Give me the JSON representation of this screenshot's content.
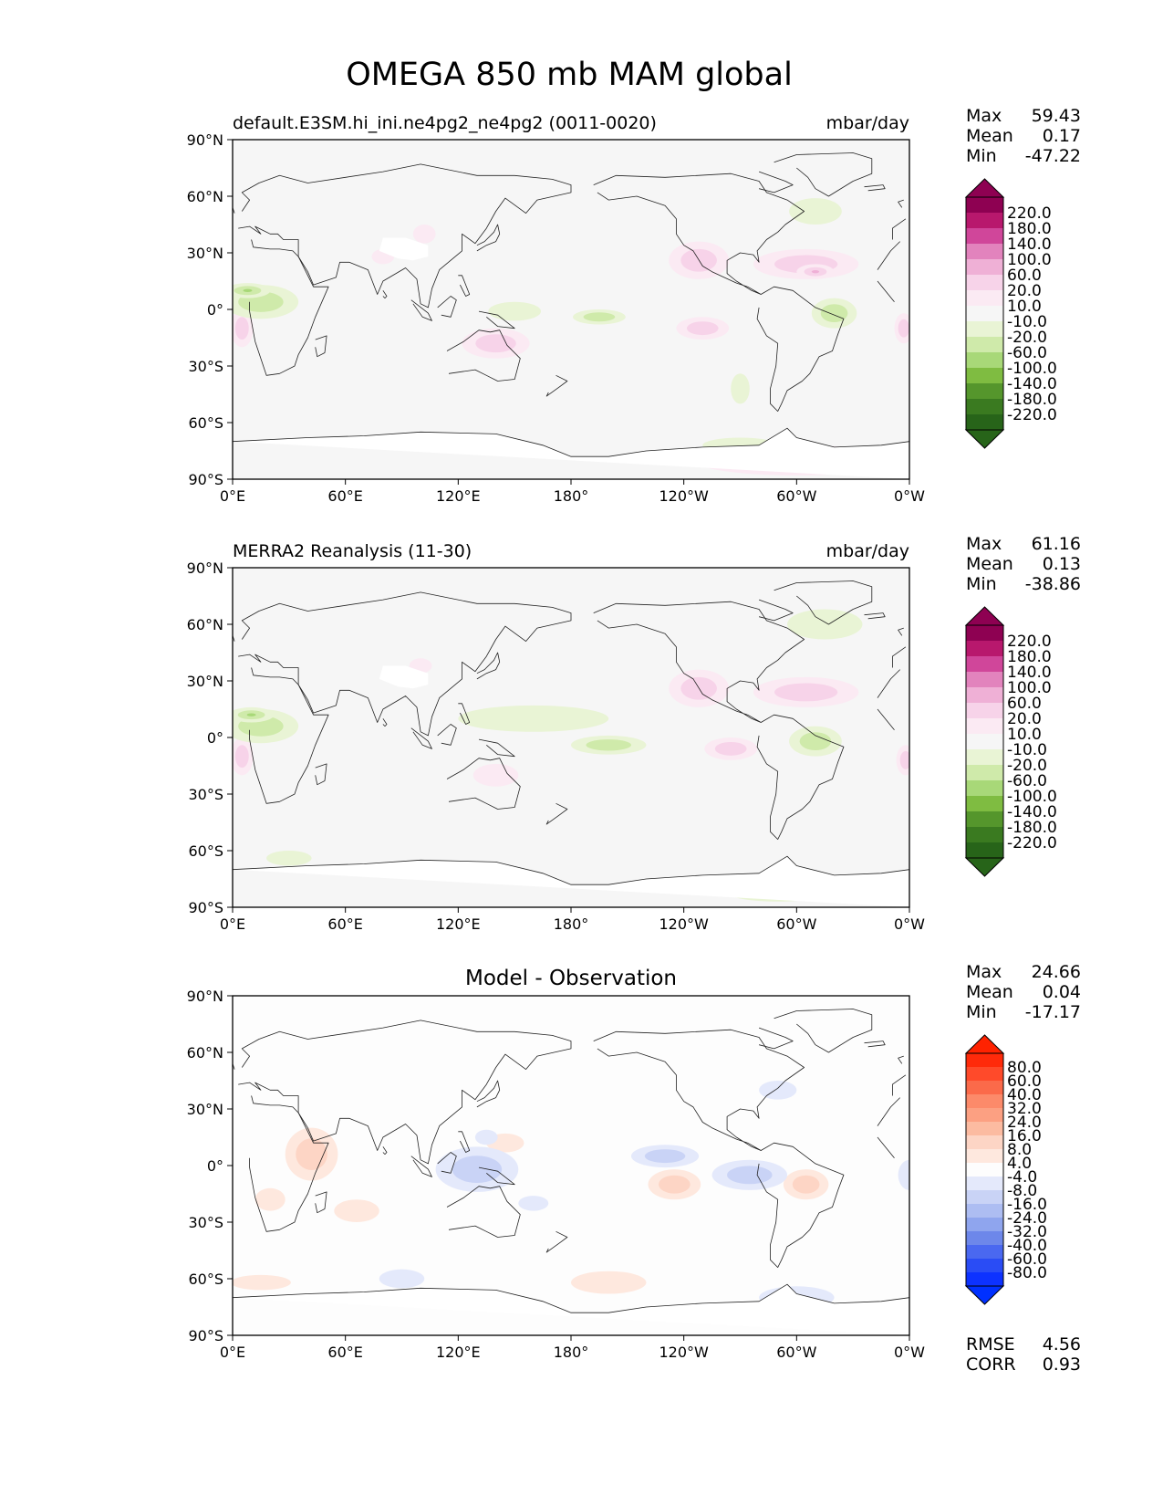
{
  "figure": {
    "title": "OMEGA 850 mb MAM global"
  },
  "axes": {
    "lat_ticks": [
      "90°N",
      "60°N",
      "30°N",
      "0°",
      "30°S",
      "60°S",
      "90°S"
    ],
    "lon_ticks": [
      "0°E",
      "60°E",
      "120°E",
      "180°",
      "120°W",
      "60°W",
      "0°W"
    ]
  },
  "panels": [
    {
      "id": "test",
      "left_title": "default.E3SM.hi_ini.ne4pg2_ne4pg2 (0011-0020)",
      "center_title": "",
      "right_title": "mbar/day",
      "stats": [
        {
          "label": "Max",
          "value": "59.43"
        },
        {
          "label": "Mean",
          "value": "0.17"
        },
        {
          "label": "Min",
          "value": "-47.22"
        }
      ],
      "colorbar": {
        "labels": [
          "220.0",
          "180.0",
          "140.0",
          "100.0",
          "60.0",
          "20.0",
          "10.0",
          "-10.0",
          "-20.0",
          "-60.0",
          "-100.0",
          "-140.0",
          "-180.0",
          "-220.0"
        ],
        "colors": [
          "#8e0152",
          "#b8186d",
          "#d0469a",
          "#e283bd",
          "#efb0d6",
          "#f7d3e9",
          "#fbeaf3",
          "#f6f6f6",
          "#e9f4d5",
          "#cfeaaa",
          "#a8d878",
          "#7fbc41",
          "#55962c",
          "#3a7a20",
          "#276419"
        ],
        "over_color": "#8e0152",
        "under_color": "#276419"
      },
      "metrics": []
    },
    {
      "id": "reference",
      "left_title": "MERRA2 Reanalysis (11-30)",
      "center_title": "",
      "right_title": "mbar/day",
      "stats": [
        {
          "label": "Max",
          "value": "61.16"
        },
        {
          "label": "Mean",
          "value": "0.13"
        },
        {
          "label": "Min",
          "value": "-38.86"
        }
      ],
      "colorbar": {
        "labels": [
          "220.0",
          "180.0",
          "140.0",
          "100.0",
          "60.0",
          "20.0",
          "10.0",
          "-10.0",
          "-20.0",
          "-60.0",
          "-100.0",
          "-140.0",
          "-180.0",
          "-220.0"
        ],
        "colors": [
          "#8e0152",
          "#b8186d",
          "#d0469a",
          "#e283bd",
          "#efb0d6",
          "#f7d3e9",
          "#fbeaf3",
          "#f6f6f6",
          "#e9f4d5",
          "#cfeaaa",
          "#a8d878",
          "#7fbc41",
          "#55962c",
          "#3a7a20",
          "#276419"
        ],
        "over_color": "#8e0152",
        "under_color": "#276419"
      },
      "metrics": []
    },
    {
      "id": "difference",
      "left_title": "",
      "center_title": "Model - Observation",
      "right_title": "",
      "stats": [
        {
          "label": "Max",
          "value": "24.66"
        },
        {
          "label": "Mean",
          "value": "0.04"
        },
        {
          "label": "Min",
          "value": "-17.17"
        }
      ],
      "colorbar": {
        "labels": [
          "80.0",
          "60.0",
          "40.0",
          "32.0",
          "24.0",
          "16.0",
          "8.0",
          "4.0",
          "-4.0",
          "-8.0",
          "-16.0",
          "-24.0",
          "-32.0",
          "-40.0",
          "-60.0",
          "-80.0"
        ],
        "colors": [
          "#ff2a0a",
          "#ff4a2a",
          "#fb6a4a",
          "#fc8a6a",
          "#fca082",
          "#fcbba1",
          "#fdd5c5",
          "#fee8de",
          "#fdfdfd",
          "#e4e9fb",
          "#c9d3f6",
          "#adbdf2",
          "#8fa5ee",
          "#6d87ea",
          "#4a68f0",
          "#2a4cf5",
          "#0d32ff"
        ],
        "over_color": "#ff2200",
        "under_color": "#0030ff"
      },
      "metrics": [
        {
          "label": "RMSE",
          "value": "4.56"
        },
        {
          "label": "CORR",
          "value": "0.93"
        }
      ]
    }
  ]
}
